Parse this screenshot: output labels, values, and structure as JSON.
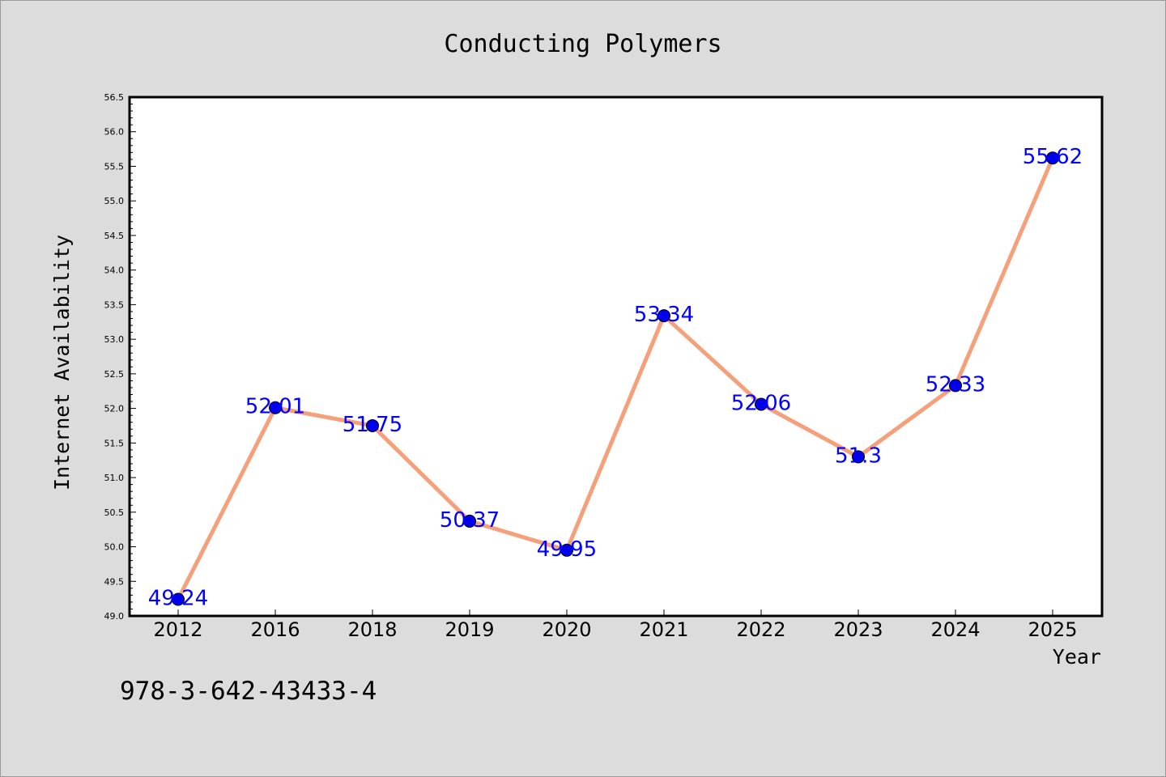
{
  "colors": {
    "line": "#f5a07a",
    "marker": "#0000ee",
    "label": "#0000ff",
    "background": "#dcdcdc",
    "plot_bg": "#ffffff"
  },
  "footer_text": "978-3-642-43433-4",
  "chart_data": {
    "type": "line",
    "title": "Conducting Polymers",
    "xlabel": "Year",
    "ylabel": "Internet Availability",
    "categories": [
      "2012",
      "2016",
      "2018",
      "2019",
      "2020",
      "2021",
      "2022",
      "2023",
      "2024",
      "2025"
    ],
    "series": [
      {
        "values": [
          49.24,
          52.01,
          51.75,
          50.37,
          49.95,
          53.34,
          52.06,
          51.3,
          52.33,
          55.62
        ]
      }
    ],
    "data_labels": [
      "49.24",
      "52.01",
      "51.75",
      "50.37",
      "49.95",
      "53.34",
      "52.06",
      "51.3",
      "52.33",
      "55.62"
    ],
    "ylim": [
      49.0,
      56.5
    ],
    "yticks": [
      "49.0",
      "49.5",
      "50.0",
      "50.5",
      "51.0",
      "51.5",
      "52.0",
      "52.5",
      "53.0",
      "53.5",
      "54.0",
      "54.5",
      "55.0",
      "55.5",
      "56.0",
      "56.5"
    ],
    "grid": false,
    "legend": "none"
  }
}
